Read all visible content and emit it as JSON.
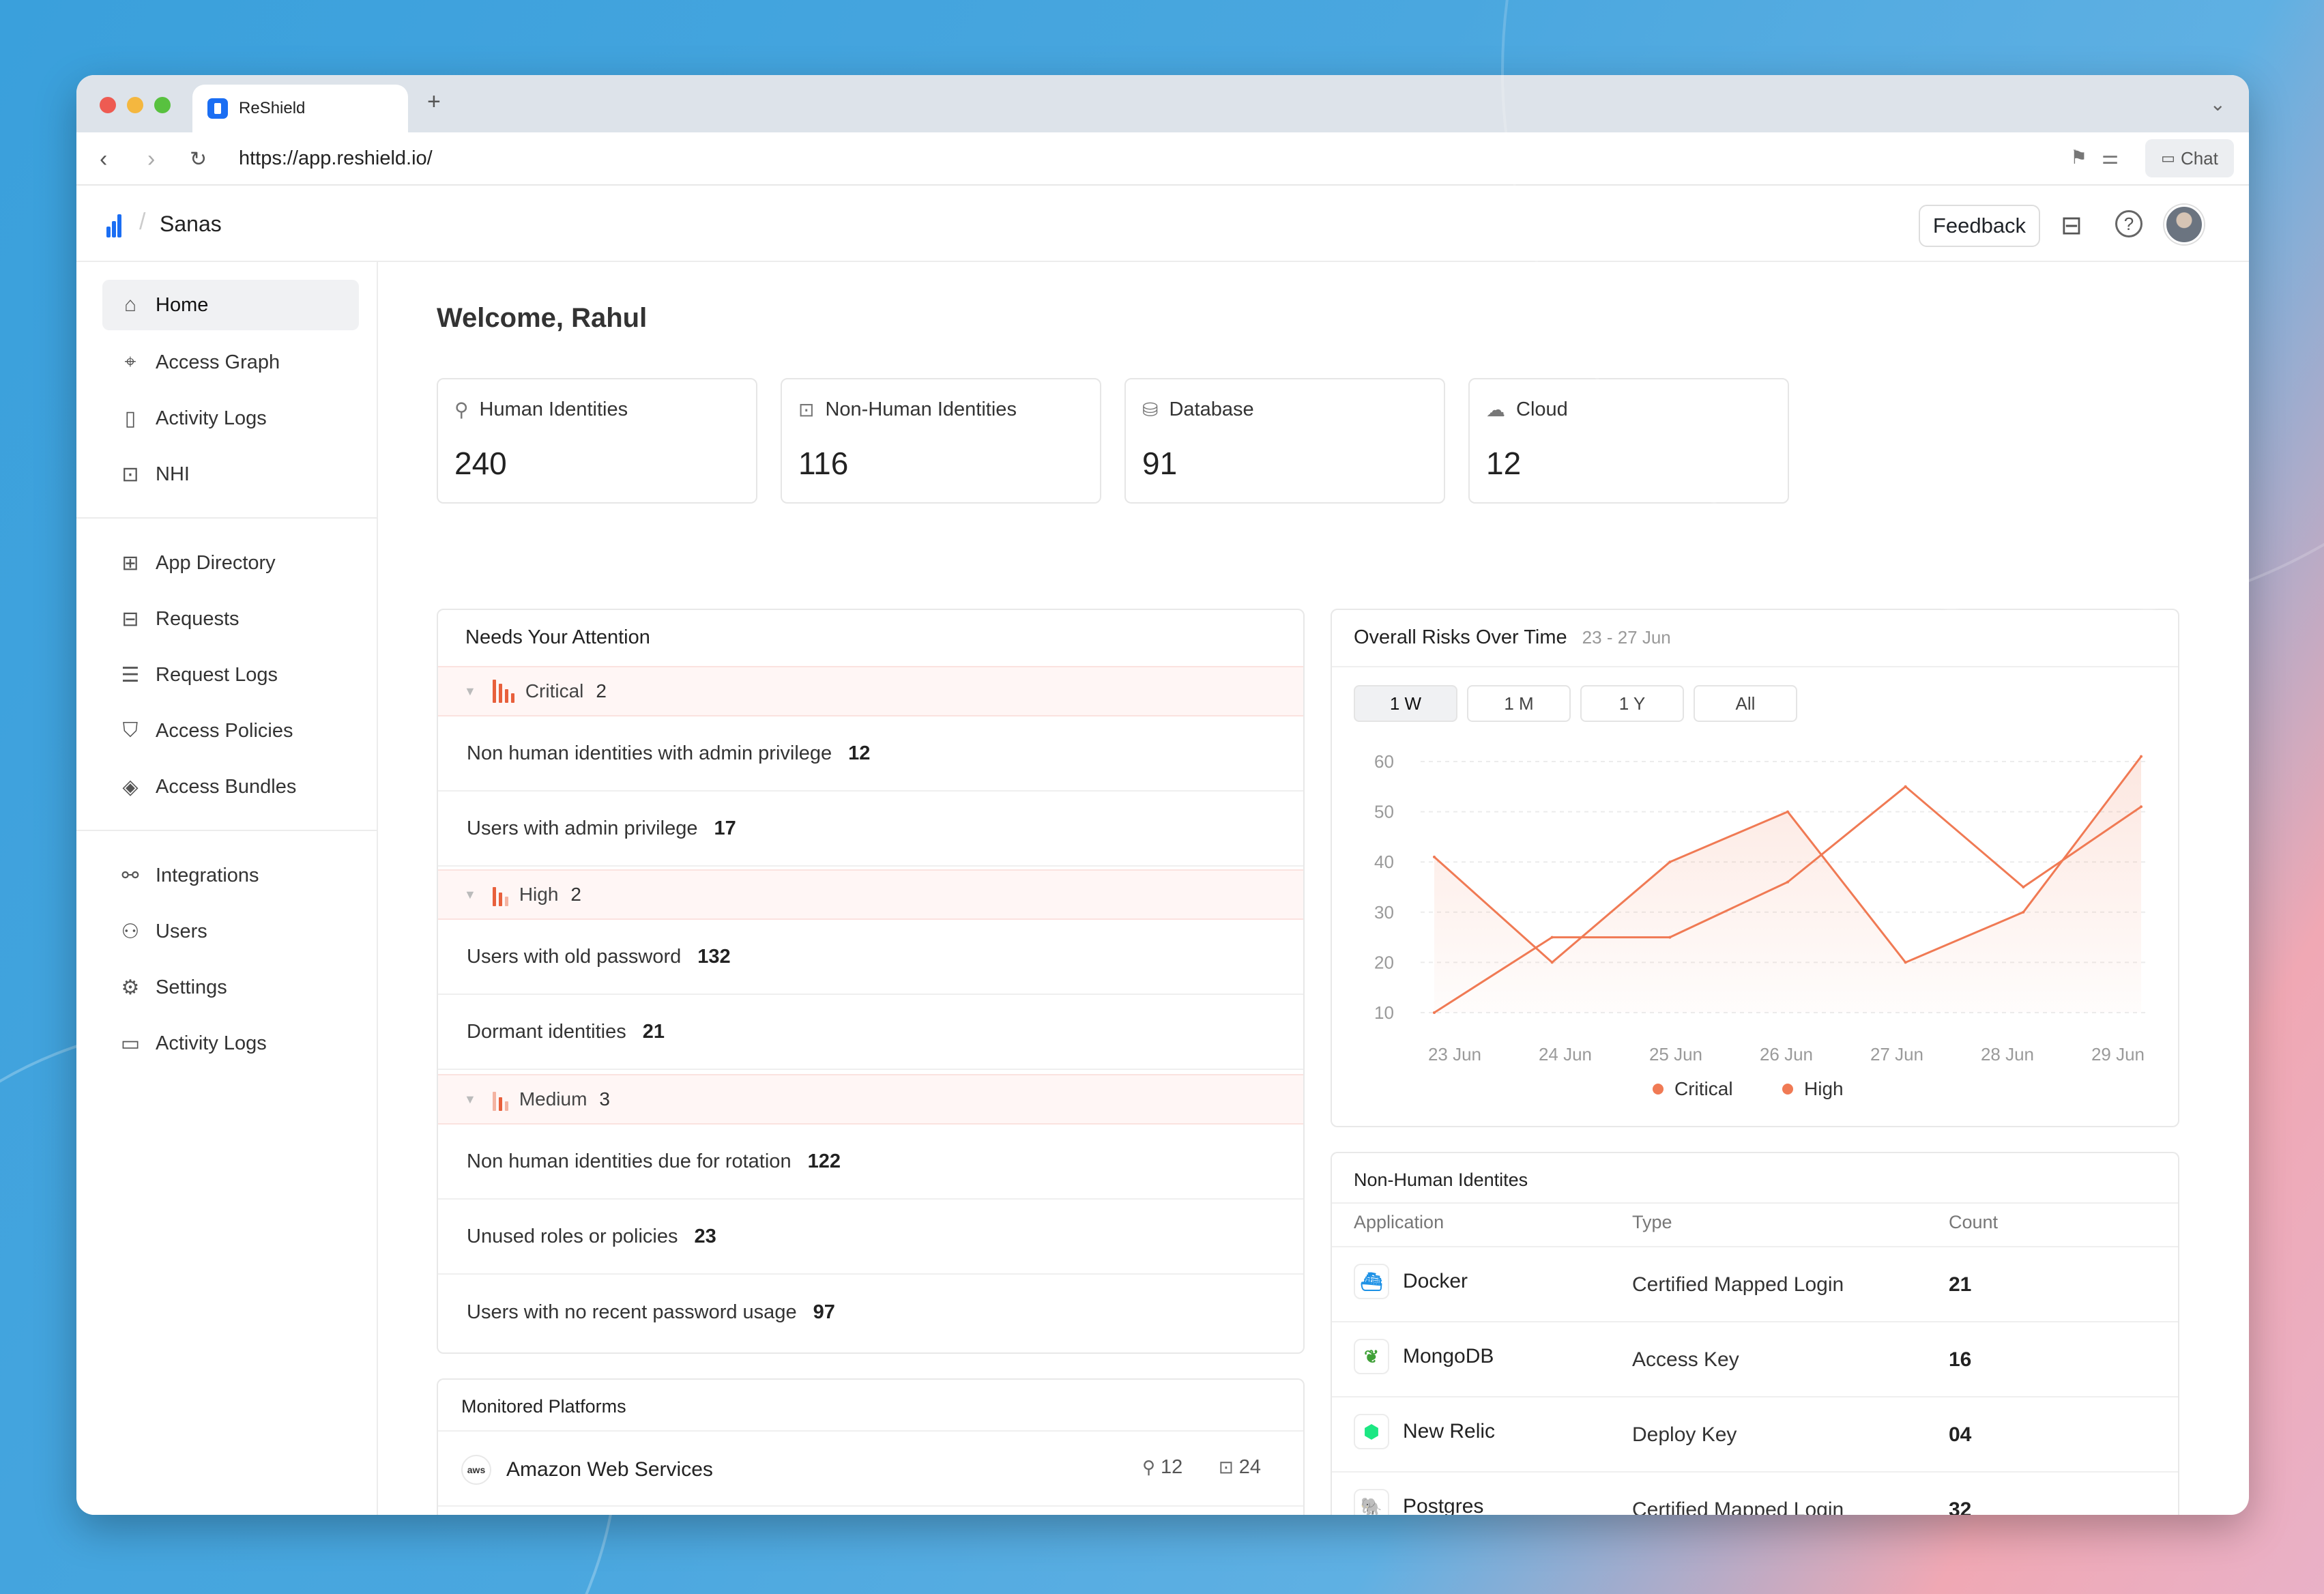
{
  "browser": {
    "tab_title": "ReShield",
    "url": "https://app.reshield.io/",
    "chat_label": "Chat",
    "icons": [
      "back-icon",
      "forward-icon",
      "reload-icon",
      "bookmark-icon",
      "sliders-icon",
      "chat-icon",
      "chevron-down-icon"
    ]
  },
  "header": {
    "org": "Sanas",
    "feedback_label": "Feedback",
    "icons": [
      "inbox-icon",
      "help-icon",
      "avatar"
    ]
  },
  "sidebar": {
    "groups": [
      [
        {
          "label": "Home",
          "icon": "home-icon",
          "active": true
        },
        {
          "label": "Access Graph",
          "icon": "telescope-icon"
        },
        {
          "label": "Activity Logs",
          "icon": "file-icon"
        },
        {
          "label": "NHI",
          "icon": "robot-icon"
        }
      ],
      [
        {
          "label": "App Directory",
          "icon": "grid-icon"
        },
        {
          "label": "Requests",
          "icon": "inbox-icon"
        },
        {
          "label": "Request Logs",
          "icon": "list-icon"
        },
        {
          "label": "Access Policies",
          "icon": "shield-icon"
        },
        {
          "label": "Access Bundles",
          "icon": "box-icon"
        }
      ],
      [
        {
          "label": "Integrations",
          "icon": "plug-icon"
        },
        {
          "label": "Users",
          "icon": "users-icon"
        },
        {
          "label": "Settings",
          "icon": "settings-icon"
        },
        {
          "label": "Activity Logs",
          "icon": "monitor-icon"
        }
      ]
    ]
  },
  "welcome": "Welcome, Rahul",
  "stats": [
    {
      "label": "Human Identities",
      "value": "240",
      "icon": "user-icon"
    },
    {
      "label": "Non-Human Identities",
      "value": "116",
      "icon": "robot-icon"
    },
    {
      "label": "Database",
      "value": "91",
      "icon": "database-icon"
    },
    {
      "label": "Cloud",
      "value": "12",
      "icon": "cloud-icon"
    }
  ],
  "attention": {
    "title": "Needs Your Attention",
    "groups": [
      {
        "severity": "Critical",
        "count": "2",
        "items": [
          {
            "label": "Non human identities with admin privilege",
            "count": "12"
          },
          {
            "label": "Users with admin privilege",
            "count": "17"
          }
        ]
      },
      {
        "severity": "High",
        "count": "2",
        "items": [
          {
            "label": "Users with old password",
            "count": "132"
          },
          {
            "label": "Dormant identities",
            "count": "21"
          }
        ]
      },
      {
        "severity": "Medium",
        "count": "3",
        "items": [
          {
            "label": "Non human identities due for rotation",
            "count": "122"
          },
          {
            "label": "Unused roles or policies",
            "count": "23"
          },
          {
            "label": "Users with no recent password usage",
            "count": "97"
          }
        ]
      }
    ]
  },
  "monitored": {
    "title": "Monitored Platforms",
    "platforms": [
      {
        "name": "Amazon Web Services",
        "logo": "aws",
        "humans": "12",
        "machines": "24"
      }
    ]
  },
  "risks": {
    "title": "Overall Risks Over Time",
    "range": "23 - 27 Jun",
    "ranges": [
      "1 W",
      "1 M",
      "1 Y",
      "All"
    ],
    "active_range": "1 W"
  },
  "chart_data": {
    "type": "line",
    "x": [
      "23 Jun",
      "24 Jun",
      "25 Jun",
      "26 Jun",
      "27 Jun",
      "28 Jun",
      "29 Jun"
    ],
    "yticks": [
      10,
      20,
      30,
      40,
      50,
      60
    ],
    "ylim": [
      10,
      60
    ],
    "grid": true,
    "legend_position": "bottom",
    "series": [
      {
        "name": "Critical",
        "color": "#f07a54",
        "points": [
          [
            0,
            41
          ],
          [
            1,
            20
          ],
          [
            2,
            40
          ],
          [
            3,
            50
          ],
          [
            4,
            20
          ],
          [
            5,
            30
          ],
          [
            6,
            61
          ]
        ]
      },
      {
        "name": "High",
        "color": "#f07a54",
        "points": [
          [
            0,
            10
          ],
          [
            1,
            25
          ],
          [
            2,
            25
          ],
          [
            3,
            36
          ],
          [
            4,
            55
          ],
          [
            5,
            35
          ],
          [
            6,
            51
          ]
        ]
      }
    ]
  },
  "nhi": {
    "title": "Non-Human Identites",
    "columns": [
      "Application",
      "Type",
      "Count"
    ],
    "rows": [
      {
        "app": "Docker",
        "type": "Certified Mapped Login",
        "count": "21",
        "logo": "docker-icon"
      },
      {
        "app": "MongoDB",
        "type": "Access Key",
        "count": "16",
        "logo": "mongodb-icon"
      },
      {
        "app": "New Relic",
        "type": "Deploy Key",
        "count": "04",
        "logo": "newrelic-icon"
      },
      {
        "app": "Postgres",
        "type": "Certified Mapped Login",
        "count": "32",
        "logo": "postgres-icon"
      }
    ]
  },
  "colors": {
    "accent": "#f07a54",
    "brand": "#1b6ef3"
  }
}
